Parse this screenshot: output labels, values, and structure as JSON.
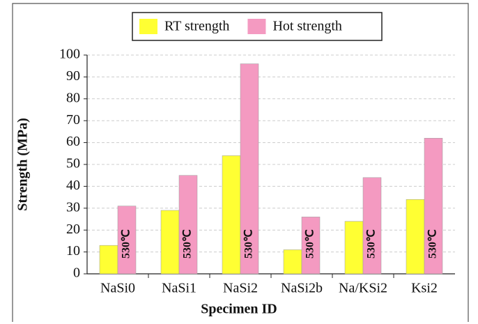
{
  "chart_data": {
    "type": "bar",
    "x_label": "Specimen ID",
    "y_label": "Strength (MPa)",
    "categories": [
      "NaSi0",
      "NaSi1",
      "NaSi2",
      "NaSi2b",
      "Na/KSi2",
      "Ksi2"
    ],
    "series": [
      {
        "name": "RT strength",
        "color": "#ffff33",
        "values": [
          13,
          29,
          54,
          11,
          24,
          34
        ]
      },
      {
        "name": "Hot strength",
        "color": "#f49ac1",
        "values": [
          31,
          45,
          96,
          26,
          44,
          62
        ]
      }
    ],
    "annotations": [
      "530℃",
      "530℃",
      "530℃",
      "530℃",
      "530℃",
      "530℃"
    ],
    "ylim": [
      0,
      100
    ],
    "yticks": [
      0,
      10,
      20,
      30,
      40,
      50,
      60,
      70,
      80,
      90,
      100
    ],
    "grid": true,
    "legend": "top"
  }
}
